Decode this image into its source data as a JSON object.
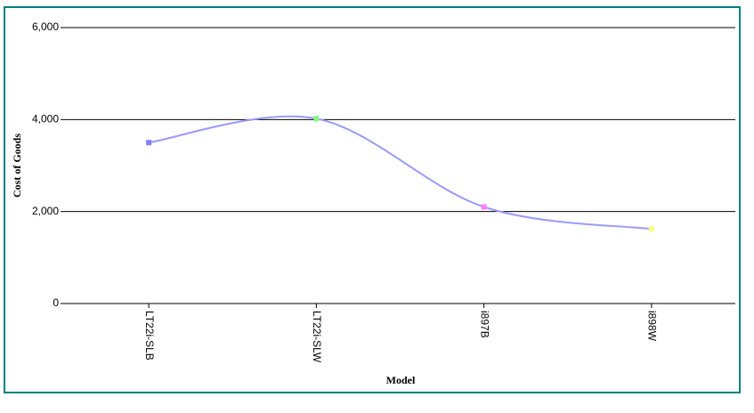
{
  "chart_data": {
    "type": "line",
    "x_label": "Model",
    "y_label": "Cost of Goods",
    "categories": [
      "LT22i-SLB",
      "LT22i-SLW",
      "i897B",
      "i898W"
    ],
    "values": [
      3500,
      4020,
      2100,
      1620
    ],
    "color": "#9999ff",
    "point_colors": [
      "#8080ff",
      "#80ff80",
      "#ff80ff",
      "#ffff80"
    ],
    "smooth": true,
    "ylim": [
      0,
      6000
    ],
    "yticks": [
      0,
      {
        "value": 2000,
        "label": "2,000"
      },
      {
        "value": 4000,
        "label": "4,000"
      },
      {
        "value": 6000,
        "label": "6,000"
      }
    ],
    "grid": true
  }
}
